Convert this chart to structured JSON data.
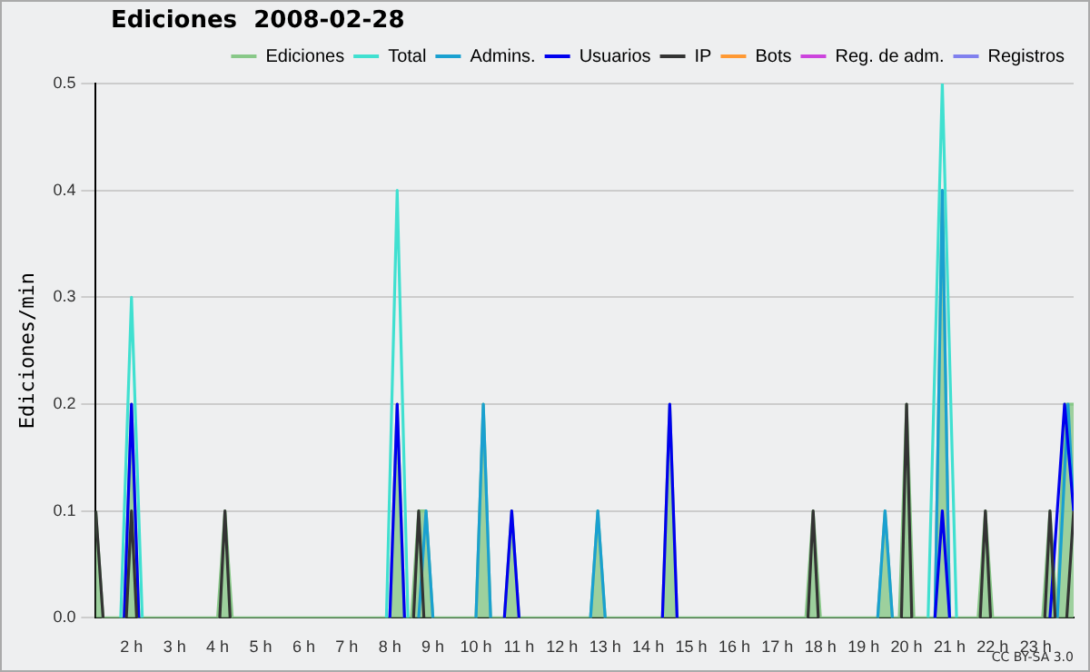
{
  "chart_data": {
    "type": "line",
    "title": "Ediciones  2008-02-28",
    "ylabel": "Ediciones/min",
    "xlim": [
      1.17,
      23.88
    ],
    "xticks": [
      {
        "value": 2,
        "label": "2 h"
      },
      {
        "value": 3,
        "label": "3 h"
      },
      {
        "value": 4,
        "label": "4 h"
      },
      {
        "value": 5,
        "label": "5 h"
      },
      {
        "value": 6,
        "label": "6 h"
      },
      {
        "value": 7,
        "label": "7 h"
      },
      {
        "value": 8,
        "label": "8 h"
      },
      {
        "value": 9,
        "label": "9 h"
      },
      {
        "value": 10,
        "label": "10 h"
      },
      {
        "value": 11,
        "label": "11 h"
      },
      {
        "value": 12,
        "label": "12 h"
      },
      {
        "value": 13,
        "label": "13 h"
      },
      {
        "value": 14,
        "label": "14 h"
      },
      {
        "value": 15,
        "label": "15 h"
      },
      {
        "value": 16,
        "label": "16 h"
      },
      {
        "value": 17,
        "label": "17 h"
      },
      {
        "value": 18,
        "label": "18 h"
      },
      {
        "value": 19,
        "label": "19 h"
      },
      {
        "value": 20,
        "label": "20 h"
      },
      {
        "value": 21,
        "label": "21 h"
      },
      {
        "value": 22,
        "label": "22 h"
      },
      {
        "value": 23,
        "label": "23 h"
      }
    ],
    "ylim": [
      0,
      0.5
    ],
    "yticks": [
      {
        "value": 0,
        "label": "0.0"
      },
      0.1,
      0.2,
      0.3,
      0.4,
      0.5
    ],
    "grid": "y",
    "legend": "top right",
    "marker": "none",
    "line_style": "solid",
    "annotations": [
      "CC BY-SA 3.0"
    ],
    "series": [
      {
        "name": "Ediciones",
        "type": "area",
        "color": "#88c888",
        "x": [
          1.17,
          1.34,
          1.83,
          2.0,
          2.17,
          4.0,
          4.17,
          4.34,
          8.0,
          8.17,
          8.34,
          8.5,
          8.67,
          8.84,
          9.0,
          10.0,
          10.17,
          10.34,
          10.66,
          10.83,
          11.0,
          12.66,
          12.83,
          13.0,
          14.33,
          14.5,
          14.67,
          17.66,
          17.83,
          18.0,
          19.33,
          19.5,
          19.67,
          19.83,
          20.0,
          20.17,
          20.66,
          20.83,
          21.0,
          21.66,
          21.83,
          22.0,
          23.16,
          23.33,
          23.5,
          23.67,
          23.88
        ],
        "values": [
          0.1,
          0,
          0,
          0.2,
          0,
          0,
          0.1,
          0,
          0,
          0.2,
          0,
          0,
          0.1,
          0.1,
          0,
          0,
          0.2,
          0,
          0,
          0.1,
          0,
          0,
          0.1,
          0,
          0,
          0.2,
          0,
          0,
          0.1,
          0,
          0,
          0.1,
          0,
          0,
          0.2,
          0,
          0,
          0.4,
          0,
          0,
          0.1,
          0,
          0,
          0.1,
          0,
          0.2,
          0.2
        ]
      },
      {
        "name": "Total",
        "color": "#40e0d0",
        "x": [
          1.75,
          2.0,
          2.25,
          5,
          7.92,
          8.17,
          8.42,
          15,
          20.5,
          20.83,
          21.16
        ],
        "values": [
          0,
          0.3,
          0,
          null,
          0,
          0.4,
          0,
          null,
          0,
          0.5,
          0
        ]
      },
      {
        "name": "Admins.",
        "color": "#1aa0d0",
        "x": [
          8.67,
          8.84,
          9.0,
          9.5,
          10.0,
          10.17,
          10.34,
          11.5,
          12.66,
          12.83,
          13.0,
          16,
          19.33,
          19.5,
          19.67,
          20.2,
          20.66,
          20.83,
          21.0,
          22.5,
          23.5,
          23.75,
          23.88
        ],
        "values": [
          0,
          0.1,
          0,
          null,
          0,
          0.2,
          0,
          null,
          0,
          0.1,
          0,
          null,
          0,
          0.1,
          0,
          null,
          0,
          0.4,
          0,
          null,
          0,
          0.2,
          0.1
        ]
      },
      {
        "name": "Usuarios",
        "color": "#0000ee",
        "x": [
          1.83,
          2.0,
          2.17,
          5,
          8.0,
          8.17,
          8.34,
          9.5,
          10.66,
          10.83,
          11.0,
          12.5,
          14.33,
          14.5,
          14.67,
          17,
          20.66,
          20.83,
          21.0,
          22.5,
          23.33,
          23.5,
          23.67,
          23.88
        ],
        "values": [
          0,
          0.2,
          0,
          null,
          0,
          0.2,
          0,
          null,
          0,
          0.1,
          0,
          null,
          0,
          0.2,
          0,
          null,
          0,
          0.1,
          0,
          null,
          0,
          0.1,
          0.2,
          0.1
        ]
      },
      {
        "name": "IP",
        "color": "#333333",
        "x": [
          1.17,
          1.34,
          1.6,
          1.88,
          2.0,
          2.12,
          3,
          4.05,
          4.17,
          4.29,
          6,
          8.55,
          8.67,
          8.79,
          13,
          17.71,
          17.83,
          17.95,
          19,
          19.88,
          20.0,
          20.12,
          21,
          21.71,
          21.83,
          21.95,
          22.5,
          23.21,
          23.33,
          23.45,
          23.6,
          23.72,
          23.88
        ],
        "values": [
          0.1,
          0,
          null,
          0,
          0.1,
          0,
          null,
          0,
          0.1,
          0,
          null,
          0,
          0.1,
          0,
          null,
          0,
          0.1,
          0,
          null,
          0,
          0.2,
          0,
          null,
          0,
          0.1,
          0,
          null,
          0,
          0.1,
          0,
          null,
          0,
          0.1
        ]
      },
      {
        "name": "Bots",
        "color": "#ff9933",
        "values": [
          null
        ]
      },
      {
        "name": "Reg. de adm.",
        "color": "#cc44dd",
        "values": [
          null
        ]
      },
      {
        "name": "Registros",
        "color": "#8080ee",
        "values": [
          null
        ]
      }
    ]
  }
}
